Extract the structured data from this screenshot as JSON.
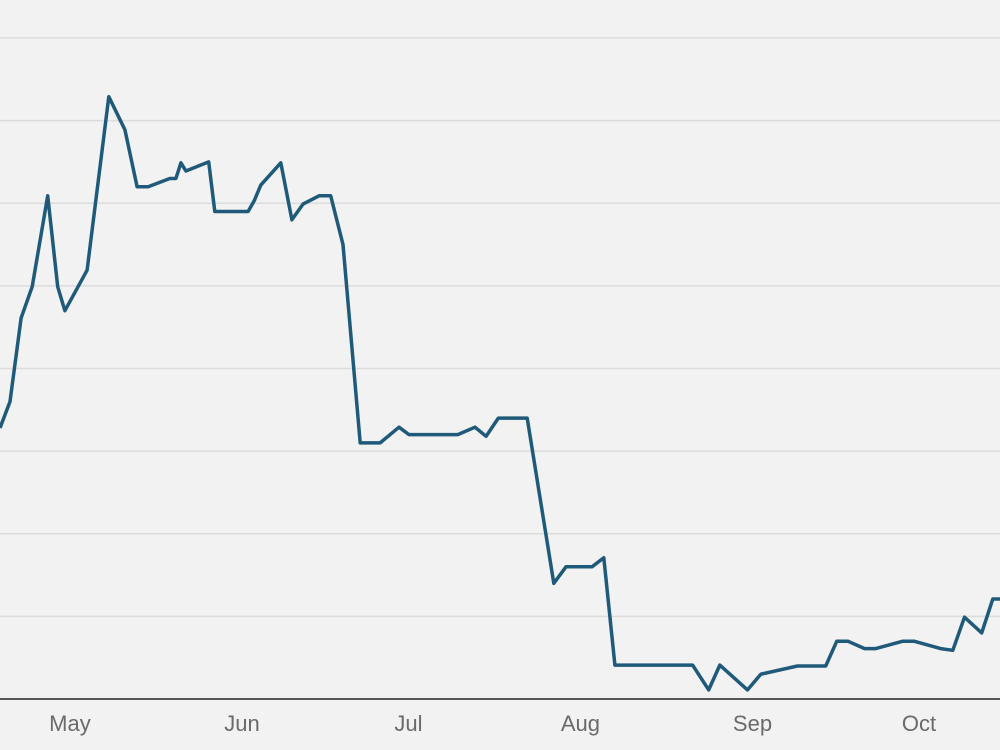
{
  "chart_data": {
    "type": "line",
    "x": [
      108.4,
      110.2,
      112.2,
      114.2,
      117.0,
      118.8,
      120.1,
      124.1,
      128.0,
      130.9,
      133.1,
      135.1,
      139.0,
      140.1,
      141.0,
      141.9,
      146.0,
      147.1,
      153.1,
      154.2,
      155.4,
      159.0,
      161.0,
      163.0,
      165.9,
      168.0,
      170.2,
      173.3,
      176.9,
      180.3,
      182.1,
      190.9,
      194.0,
      196.0,
      198.2,
      203.4,
      208.2,
      210.4,
      215.1,
      217.2,
      219.2,
      233.2,
      236.1,
      238.1,
      243.1,
      245.5,
      252.1,
      257.2,
      259.2,
      261.2,
      264.2,
      266.2,
      271.1,
      273.1,
      277.9,
      280.1,
      282.2,
      285.3,
      287.3,
      288.6
    ],
    "series": [
      {
        "color": "#1f5a7a",
        "values": [
          3.28,
          3.6,
          4.61,
          4.99,
          6.09,
          4.99,
          4.7,
          5.19,
          7.29,
          6.89,
          6.2,
          6.2,
          6.3,
          6.3,
          6.49,
          6.39,
          6.5,
          5.9,
          5.9,
          6.03,
          6.22,
          6.49,
          5.8,
          5.99,
          6.09,
          6.09,
          5.5,
          3.1,
          3.1,
          3.29,
          3.2,
          3.2,
          3.29,
          3.18,
          3.4,
          3.4,
          1.4,
          1.6,
          1.6,
          1.71,
          0.41,
          0.41,
          0.11,
          0.41,
          0.11,
          0.3,
          0.4,
          0.4,
          0.7,
          0.7,
          0.61,
          0.61,
          0.7,
          0.7,
          0.61,
          0.59,
          0.99,
          0.8,
          1.21,
          1.21
        ]
      }
    ],
    "xlim": [
      108.4,
      288.6
    ],
    "xticks": [
      {
        "value": 121,
        "label": "May"
      },
      {
        "value": 152,
        "label": "Jun"
      },
      {
        "value": 182,
        "label": "Jul"
      },
      {
        "value": 213,
        "label": "Aug"
      },
      {
        "value": 244,
        "label": "Sep"
      },
      {
        "value": 274,
        "label": "Oct"
      }
    ],
    "ylim": [
      0,
      8.46
    ],
    "gridlines": [
      1,
      2,
      3,
      4,
      5,
      6,
      7,
      8
    ],
    "grid": true
  }
}
